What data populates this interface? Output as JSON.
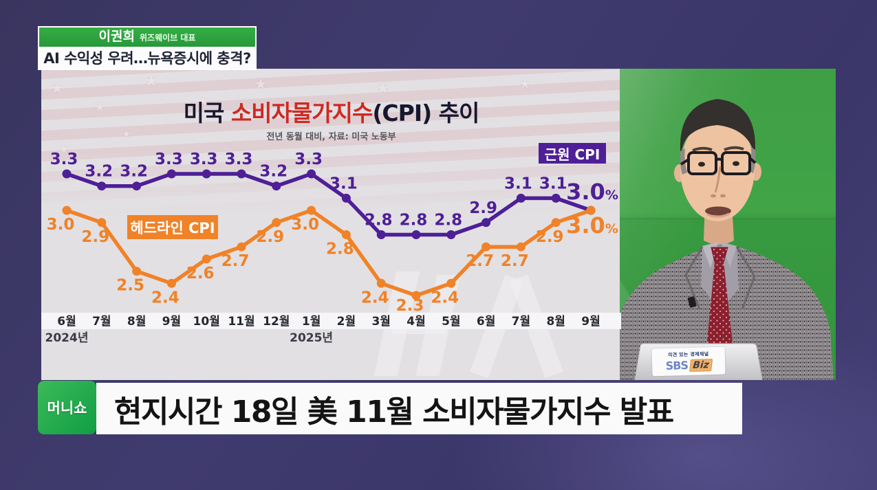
{
  "speaker_banner": {
    "name": "이권희",
    "affiliation": "위즈웨이브 대표"
  },
  "topic_banner": {
    "text": "AI 수익성 우려…뉴욕증시에 충격?"
  },
  "chart_data": {
    "type": "line",
    "title": "미국 소비자물가지수(CPI) 추이",
    "title_parts": {
      "prefix": "미국 ",
      "highlight": "소비자물가지수",
      "suffix": "(CPI) 추이"
    },
    "subtitle": "전년 동월 대비, 자료: 미국 노동부",
    "categories": [
      "6월",
      "7월",
      "8월",
      "9월",
      "10월",
      "11월",
      "12월",
      "1월",
      "2월",
      "3월",
      "4월",
      "5월",
      "6월",
      "7월",
      "8월",
      "9월"
    ],
    "year_markers": [
      {
        "label": "2024년",
        "index": 0
      },
      {
        "label": "2025년",
        "index": 7
      }
    ],
    "ylim": [
      2.2,
      3.45
    ],
    "grid": false,
    "legend_position": "inline-boxes",
    "series": [
      {
        "name": "근원 CPI",
        "color": "#4e1f96",
        "values": [
          3.3,
          3.2,
          3.2,
          3.3,
          3.3,
          3.3,
          3.2,
          3.3,
          3.1,
          2.8,
          2.8,
          2.8,
          2.9,
          3.1,
          3.1,
          3.0
        ],
        "last_value_suffix": "%"
      },
      {
        "name": "헤드라인 CPI",
        "color": "#f08228",
        "values": [
          3.0,
          2.9,
          2.5,
          2.4,
          2.6,
          2.7,
          2.9,
          3.0,
          2.8,
          2.4,
          2.3,
          2.4,
          2.7,
          2.7,
          2.9,
          3.0
        ],
        "last_value_suffix": "%"
      }
    ]
  },
  "bottom_banner": {
    "logo": "머니쇼",
    "headline": "현지시간 18일 美 11월 소비자물가지수 발표"
  },
  "studio": {
    "laptop_sticker": {
      "tagline": "의견 있는 경제채널",
      "brand": "SBS",
      "brand_suffix": "Biz"
    }
  }
}
